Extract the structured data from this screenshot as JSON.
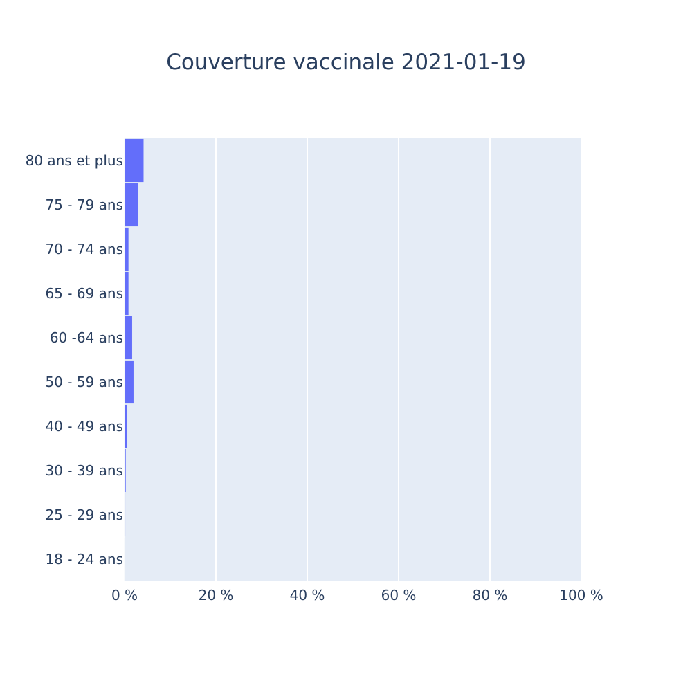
{
  "chart_data": {
    "type": "bar",
    "orientation": "horizontal",
    "title": "Couverture vaccinale 2021-01-19",
    "xlabel": "",
    "ylabel": "",
    "categories": [
      "80 ans et plus",
      "75 - 79 ans",
      "70 - 74 ans",
      "65 - 69 ans",
      "60 -64 ans",
      "50 - 59 ans",
      "40 - 49 ans",
      "30 - 39 ans",
      "25 - 29 ans",
      "18 - 24 ans"
    ],
    "values": [
      4.2,
      3.0,
      0.9,
      0.9,
      1.7,
      2.0,
      0.5,
      0.3,
      0.2,
      0.1
    ],
    "xlim": [
      0,
      100
    ],
    "x_ticks": [
      0,
      20,
      40,
      60,
      80,
      100
    ],
    "x_tick_labels": [
      "0 %",
      "20 %",
      "40 %",
      "60 %",
      "80 %",
      "100 %"
    ],
    "grid": true,
    "legend": "none",
    "colors": {
      "bar": "#636efa",
      "plot_background": "#e5ecf6",
      "grid": "#ffffff",
      "text": "#2a3f5f"
    }
  }
}
